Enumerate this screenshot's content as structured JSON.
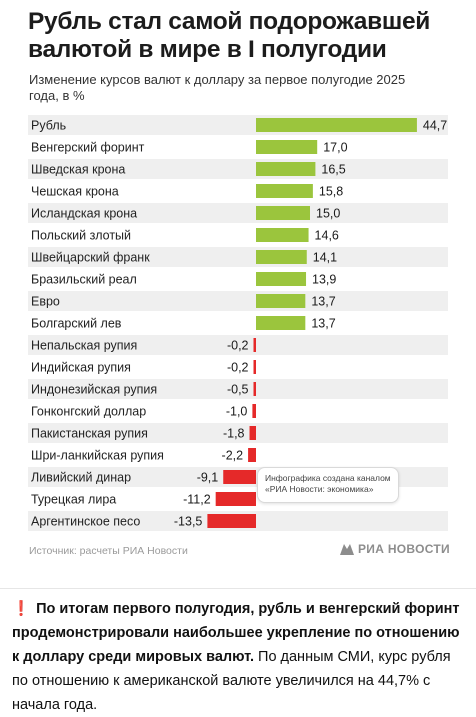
{
  "header": {
    "title": "Рубль стал самой подорожавшей валютой в мире в I полугодии",
    "subtitle": "Изменение курсов валют к доллару за первое полугодие 2025 года, в %"
  },
  "chart_data": {
    "type": "bar",
    "orientation": "horizontal",
    "categories": [
      "Рубль",
      "Венгерский форинт",
      "Шведская крона",
      "Чешская крона",
      "Исландская крона",
      "Польский злотый",
      "Швейцарский франк",
      "Бразильский реал",
      "Евро",
      "Болгарский лев",
      "Непальская рупия",
      "Индийская рупия",
      "Индонезийская рупия",
      "Гонконгский доллар",
      "Пакистанская рупия",
      "Шри-ланкийская рупия",
      "Ливийский динар",
      "Турецкая лира",
      "Аргентинское песо"
    ],
    "values": [
      44.7,
      17.0,
      16.5,
      15.8,
      15.0,
      14.6,
      14.1,
      13.9,
      13.7,
      13.7,
      -0.2,
      -0.2,
      -0.5,
      -1.0,
      -1.8,
      -2.2,
      -9.1,
      -11.2,
      -13.5
    ],
    "value_labels": [
      "44,7",
      "17,0",
      "16,5",
      "15,8",
      "15,0",
      "14,6",
      "14,1",
      "13,9",
      "13,7",
      "13,7",
      "-0,2",
      "-0,2",
      "-0,5",
      "-1,0",
      "-1,8",
      "-2,2",
      "-9,1",
      "-11,2",
      "-13,5"
    ],
    "colors": {
      "positive": "#9bc53d",
      "negative": "#e52929"
    },
    "row_band_color": "#efefef",
    "grid": false,
    "legend": "none"
  },
  "note": {
    "line1": "Инфографика создана каналом",
    "line2": "«РИА Новости: экономика»"
  },
  "footer": {
    "source": "Источник: расчеты РИА Новости",
    "logo": "РИА НОВОСТИ"
  },
  "caption": {
    "bold_text": "По итогам первого полугодия, рубль и венгерский форинт продемонстрировали наибольшее укрепление по отношению к доллару среди мировых валют.",
    "text": "По данным СМИ, курс рубля по отношению к американской валюте увеличился на 44,7% с начала года."
  }
}
